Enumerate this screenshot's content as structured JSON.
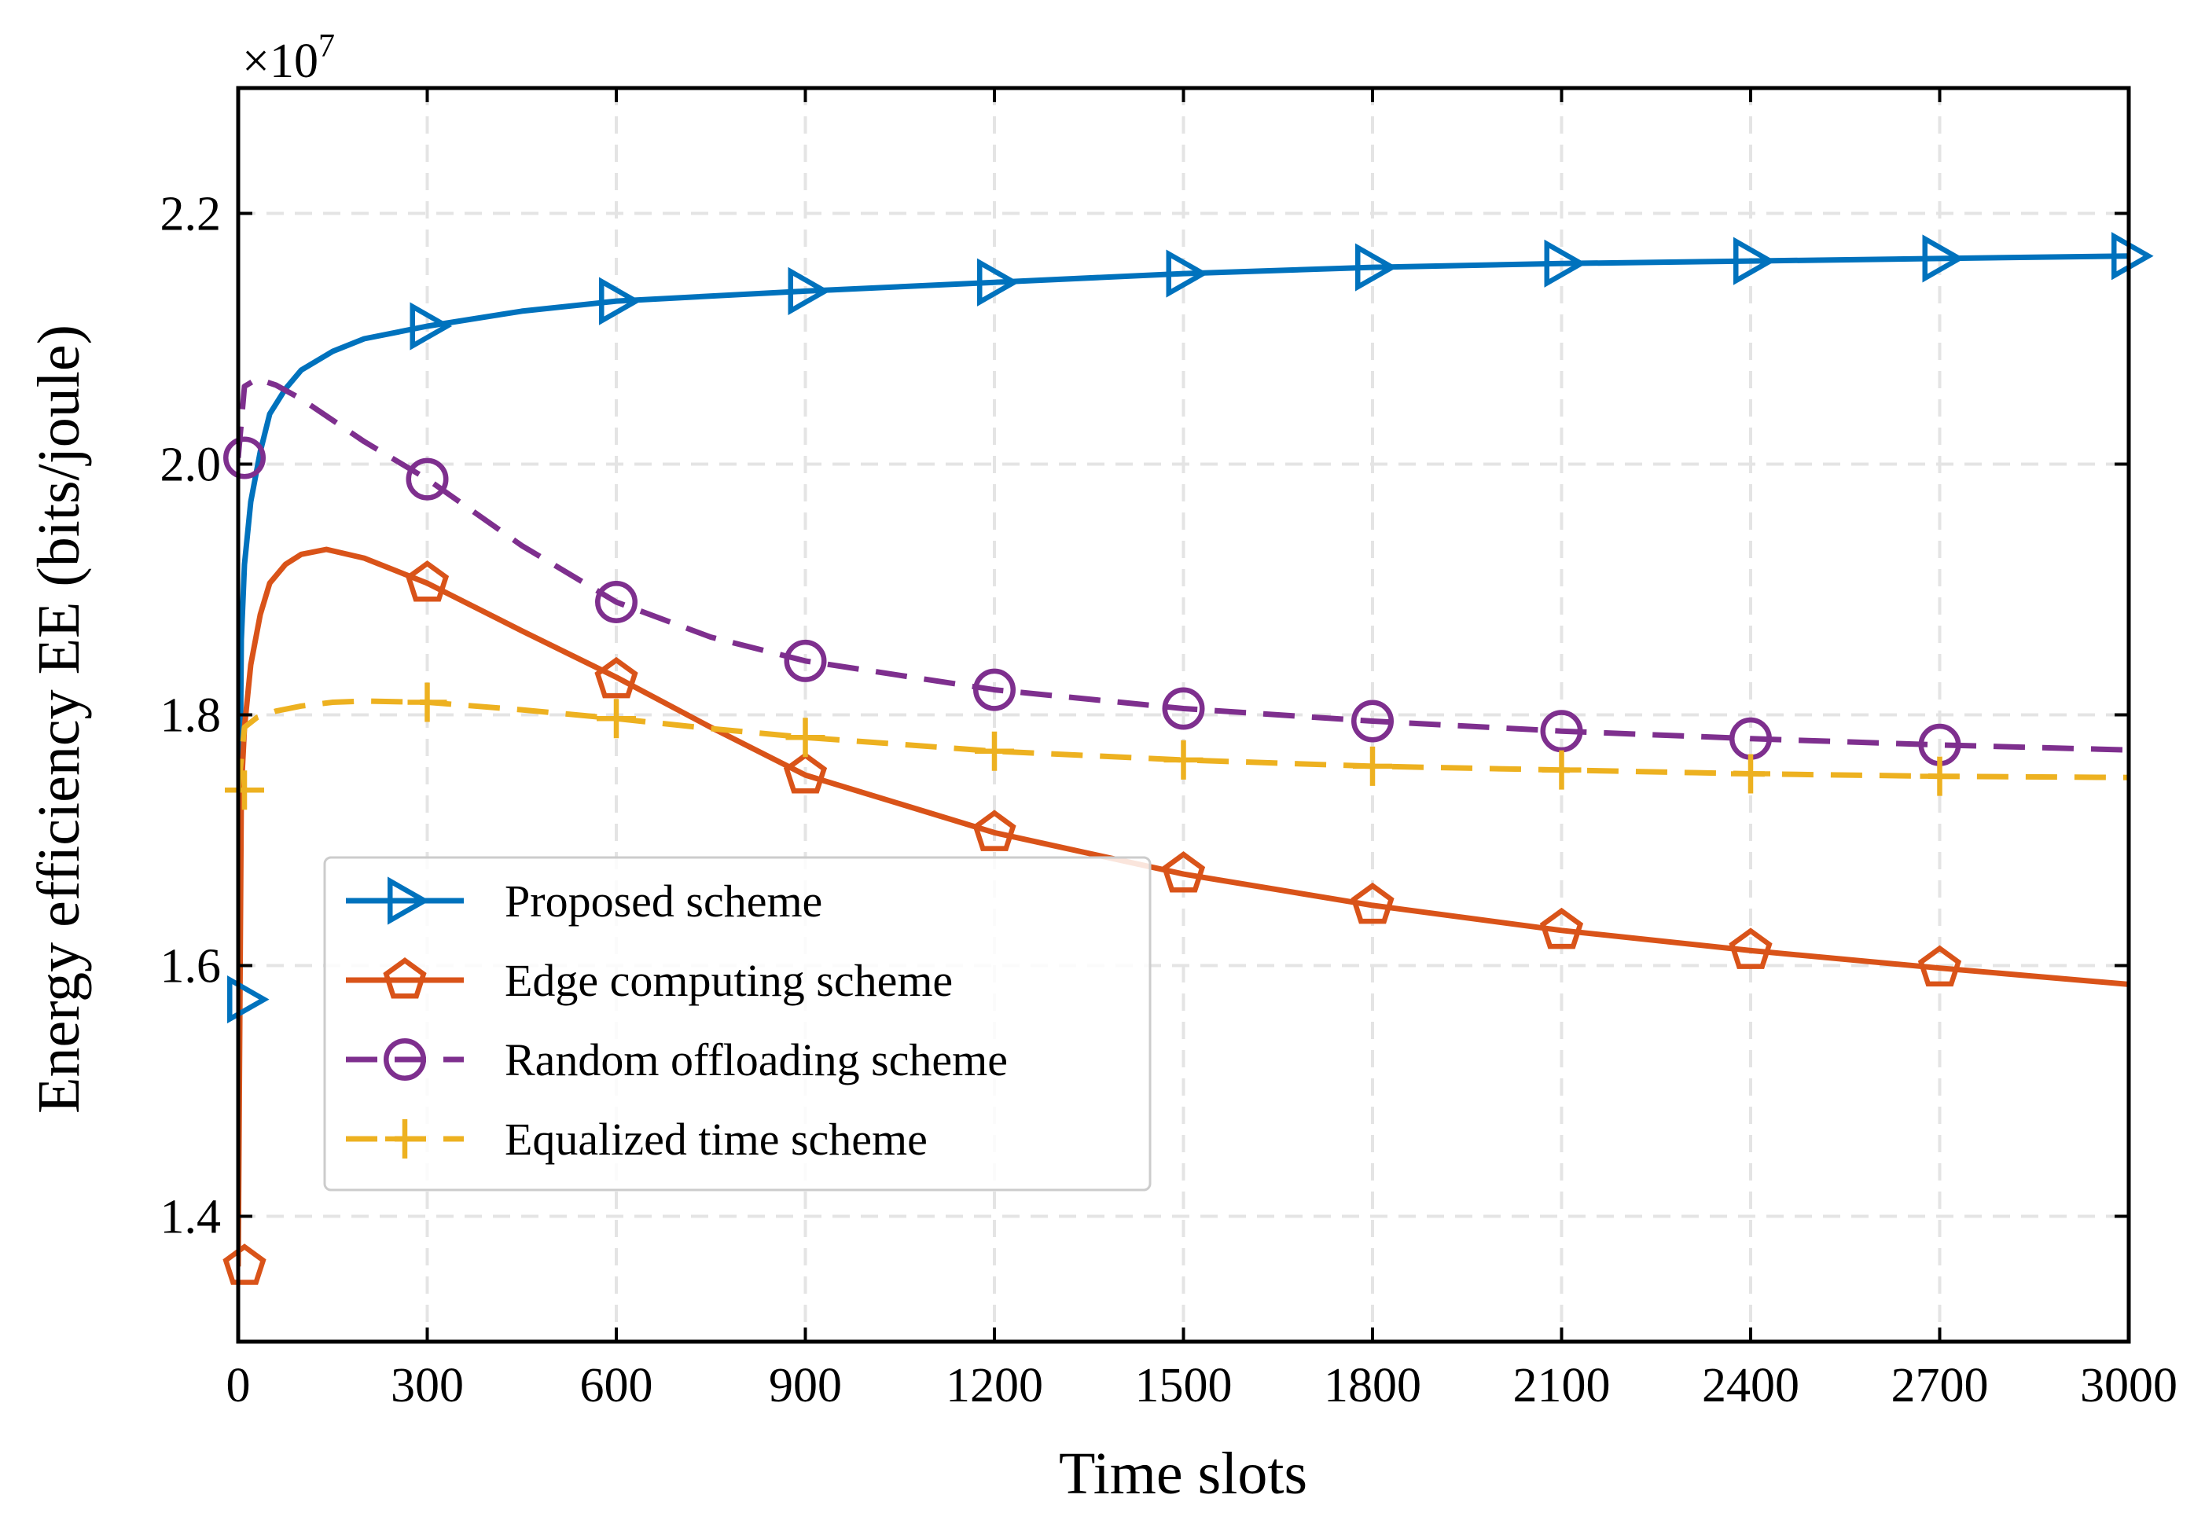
{
  "chart_data": {
    "type": "line",
    "title": "",
    "xlabel": "Time slots",
    "ylabel": "Energy efficiency EE (bits/joule)",
    "y_scale_label": "×10",
    "y_scale_exponent": "7",
    "xlim": [
      0,
      3000
    ],
    "ylim": [
      1.3,
      2.3
    ],
    "x_ticks": [
      0,
      300,
      600,
      900,
      1200,
      1500,
      1800,
      2100,
      2400,
      2700,
      3000
    ],
    "x_tick_labels": [
      "0",
      "300",
      "600",
      "900",
      "1200",
      "1500",
      "1800",
      "2100",
      "2400",
      "2700",
      "3000"
    ],
    "y_ticks": [
      1.4,
      1.6,
      1.8,
      2.0,
      2.2
    ],
    "y_tick_labels": [
      "1.4",
      "1.6",
      "1.8",
      "2.0",
      "2.2"
    ],
    "grid": true,
    "legend_position": "lower-left",
    "series": [
      {
        "name": "Proposed scheme",
        "color": "#0072BD",
        "line_style": "solid",
        "marker": "triangle-right",
        "x": [
          0,
          5,
          10,
          20,
          35,
          50,
          75,
          100,
          150,
          200,
          300,
          450,
          600,
          900,
          1200,
          1500,
          1800,
          2100,
          2400,
          2700,
          3000
        ],
        "y": [
          1.57,
          1.86,
          1.92,
          1.97,
          2.01,
          2.04,
          2.06,
          2.075,
          2.09,
          2.1,
          2.11,
          2.122,
          2.13,
          2.138,
          2.145,
          2.152,
          2.157,
          2.16,
          2.162,
          2.164,
          2.166
        ],
        "marker_x": [
          10,
          300,
          600,
          900,
          1200,
          1500,
          1800,
          2100,
          2400,
          2700,
          3000
        ],
        "marker_y": [
          1.573,
          2.11,
          2.13,
          2.138,
          2.145,
          2.152,
          2.157,
          2.16,
          2.162,
          2.164,
          2.166
        ]
      },
      {
        "name": "Edge computing scheme",
        "color": "#D95319",
        "line_style": "solid",
        "marker": "pentagon",
        "x": [
          0,
          5,
          10,
          20,
          35,
          50,
          75,
          100,
          140,
          200,
          300,
          450,
          600,
          750,
          900,
          1200,
          1500,
          1800,
          2100,
          2400,
          2700,
          3000
        ],
        "y": [
          1.36,
          1.74,
          1.79,
          1.84,
          1.88,
          1.905,
          1.92,
          1.928,
          1.932,
          1.925,
          1.905,
          1.867,
          1.83,
          1.79,
          1.752,
          1.706,
          1.673,
          1.648,
          1.628,
          1.612,
          1.598,
          1.585
        ],
        "marker_x": [
          10,
          300,
          600,
          900,
          1200,
          1500,
          1800,
          2100,
          2400,
          2700
        ],
        "marker_y": [
          1.36,
          1.905,
          1.828,
          1.752,
          1.706,
          1.673,
          1.648,
          1.628,
          1.612,
          1.598
        ]
      },
      {
        "name": "Random offloading scheme",
        "color": "#7E2F8E",
        "line_style": "dashed",
        "marker": "circle",
        "x": [
          0,
          10,
          30,
          60,
          100,
          150,
          200,
          300,
          450,
          600,
          750,
          900,
          1200,
          1500,
          1800,
          2100,
          2400,
          2700,
          3000
        ],
        "y": [
          2.005,
          2.062,
          2.068,
          2.063,
          2.052,
          2.035,
          2.018,
          1.988,
          1.935,
          1.89,
          1.862,
          1.843,
          1.82,
          1.805,
          1.795,
          1.787,
          1.781,
          1.776,
          1.772
        ],
        "marker_x": [
          10,
          300,
          600,
          900,
          1200,
          1500,
          1800,
          2100,
          2400,
          2700
        ],
        "marker_y": [
          2.005,
          1.988,
          1.89,
          1.843,
          1.82,
          1.805,
          1.795,
          1.787,
          1.781,
          1.776
        ]
      },
      {
        "name": "Equalized time scheme",
        "color": "#EDB120",
        "line_style": "dashed",
        "marker": "plus",
        "x": [
          0,
          10,
          30,
          60,
          100,
          150,
          200,
          300,
          450,
          600,
          750,
          900,
          1200,
          1500,
          1800,
          2100,
          2400,
          2700,
          3000
        ],
        "y": [
          1.74,
          1.79,
          1.798,
          1.803,
          1.807,
          1.81,
          1.811,
          1.81,
          1.804,
          1.797,
          1.789,
          1.782,
          1.771,
          1.764,
          1.759,
          1.756,
          1.753,
          1.751,
          1.75
        ],
        "marker_x": [
          10,
          300,
          600,
          900,
          1200,
          1500,
          1800,
          2100,
          2400,
          2700
        ],
        "marker_y": [
          1.74,
          1.81,
          1.797,
          1.782,
          1.771,
          1.764,
          1.759,
          1.756,
          1.753,
          1.751
        ]
      }
    ]
  }
}
